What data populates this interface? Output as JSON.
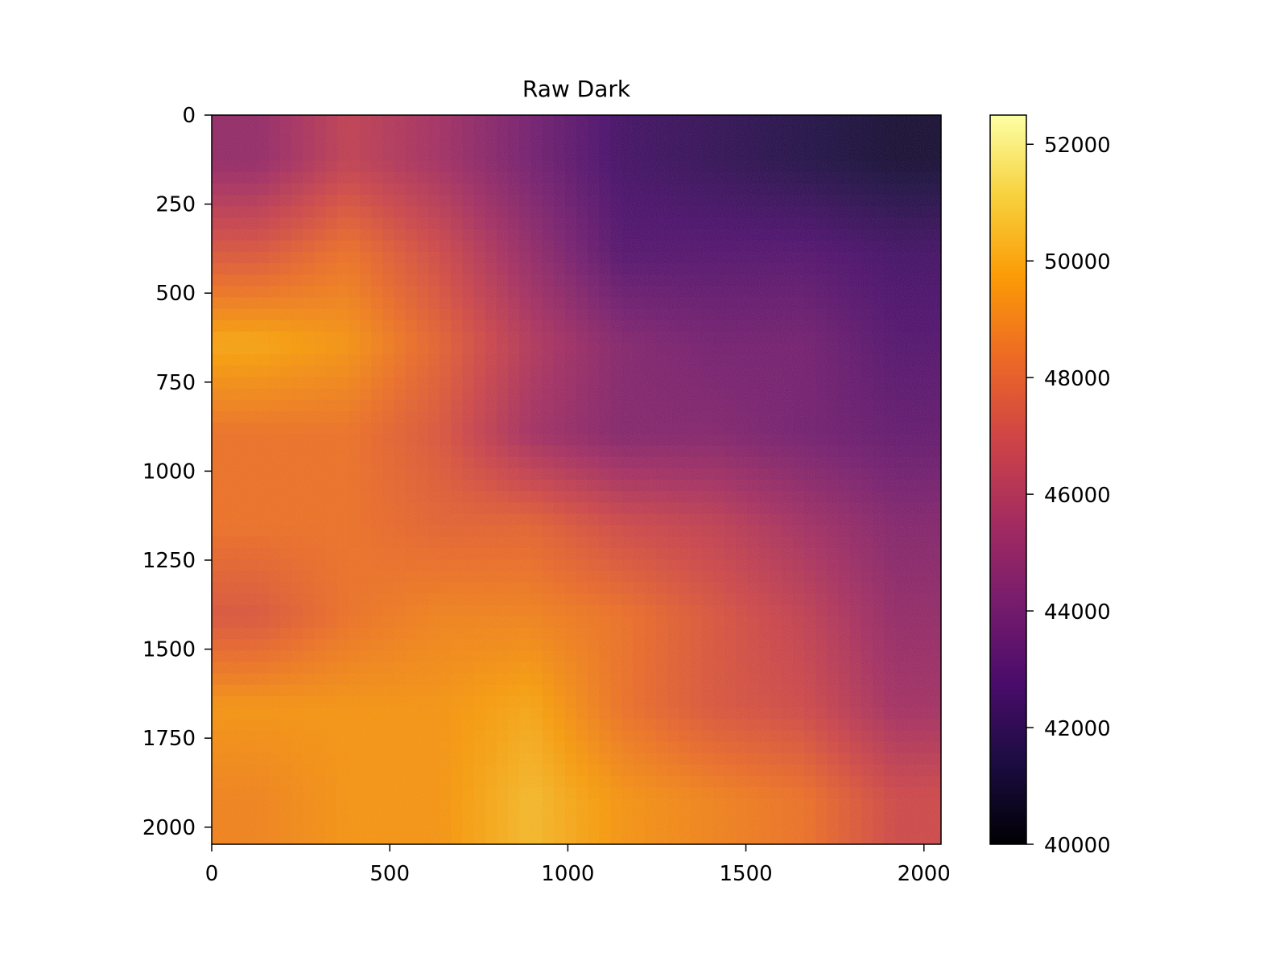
{
  "chart_data": {
    "type": "heatmap",
    "title": "Raw Dark",
    "xlabel": "",
    "ylabel": "",
    "colormap": "inferno",
    "x_ticks": [
      0,
      500,
      1000,
      1500,
      2000
    ],
    "y_ticks": [
      0,
      250,
      500,
      750,
      1000,
      1250,
      1500,
      1750,
      2000
    ],
    "x_range": [
      0,
      2048
    ],
    "y_range": [
      0,
      2048
    ],
    "y_inverted": true,
    "colorbar": {
      "range": [
        40000,
        52500
      ],
      "ticks": [
        40000,
        42000,
        44000,
        46000,
        48000,
        50000,
        52000
      ]
    },
    "intensity_grid": {
      "x_centers": [
        128,
        384,
        640,
        896,
        1152,
        1408,
        1664,
        1920
      ],
      "y_centers": [
        128,
        384,
        640,
        896,
        1152,
        1408,
        1664,
        1920
      ],
      "values": [
        [
          45000,
          46500,
          45500,
          44000,
          42500,
          42000,
          41500,
          41000
        ],
        [
          47500,
          48500,
          47000,
          45000,
          43000,
          43000,
          43000,
          42500
        ],
        [
          50000,
          49500,
          48000,
          46000,
          44500,
          44000,
          44000,
          43000
        ],
        [
          48500,
          48500,
          47500,
          45500,
          44500,
          44500,
          44000,
          43500
        ],
        [
          48500,
          48500,
          48000,
          48000,
          47000,
          46500,
          45500,
          44500
        ],
        [
          47500,
          48500,
          49000,
          49000,
          48500,
          47500,
          46500,
          45000
        ],
        [
          49500,
          49500,
          49500,
          50000,
          48500,
          47500,
          47000,
          45500
        ],
        [
          49000,
          49500,
          49500,
          50500,
          49500,
          49000,
          48500,
          47000
        ]
      ]
    },
    "colors": {
      "stop_0": "#000004",
      "stop_1": "#1b0c41",
      "stop_2": "#4a0c6b",
      "stop_3": "#781c6d",
      "stop_4": "#a52c60",
      "stop_5": "#cf4446",
      "stop_6": "#ed6925",
      "stop_7": "#fb9b06",
      "stop_8": "#f7d13d",
      "stop_9": "#fcffa4"
    }
  }
}
